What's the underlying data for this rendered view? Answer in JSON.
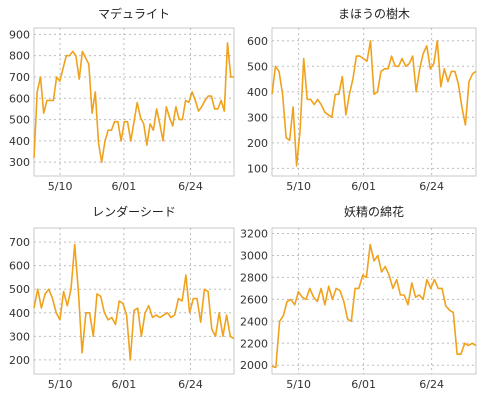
{
  "chart_data": [
    {
      "type": "line",
      "title": "マデュライト",
      "xlabel": "",
      "ylabel": "",
      "color": "#F0A21C",
      "xticks": [
        "5/10",
        "6/01",
        "6/24"
      ],
      "yticks": [
        300,
        400,
        500,
        600,
        700,
        800,
        900
      ],
      "ylim": [
        235,
        930
      ],
      "x_range_days": [
        0,
        69
      ],
      "xtick_days": [
        9,
        31,
        54
      ],
      "grid": true,
      "values": [
        320,
        630,
        700,
        530,
        590,
        590,
        590,
        700,
        680,
        740,
        800,
        800,
        820,
        800,
        690,
        820,
        790,
        760,
        530,
        630,
        390,
        300,
        400,
        450,
        450,
        490,
        490,
        400,
        490,
        490,
        400,
        490,
        580,
        510,
        480,
        380,
        480,
        450,
        550,
        480,
        400,
        560,
        510,
        470,
        560,
        500,
        500,
        590,
        580,
        630,
        590,
        540,
        560,
        590,
        610,
        610,
        550,
        550,
        590,
        540,
        860,
        700,
        700
      ]
    },
    {
      "type": "line",
      "title": "まほうの樹木",
      "xlabel": "",
      "ylabel": "",
      "color": "#F0A21C",
      "xticks": [
        "5/10",
        "6/01",
        "6/24"
      ],
      "yticks": [
        100,
        200,
        300,
        400,
        500,
        600
      ],
      "ylim": [
        70,
        650
      ],
      "x_range_days": [
        0,
        69
      ],
      "xtick_days": [
        9,
        31,
        54
      ],
      "grid": true,
      "values": [
        390,
        500,
        480,
        390,
        220,
        210,
        340,
        110,
        250,
        530,
        370,
        370,
        350,
        370,
        350,
        320,
        310,
        300,
        390,
        390,
        460,
        310,
        390,
        450,
        540,
        540,
        530,
        520,
        600,
        390,
        400,
        480,
        490,
        490,
        540,
        500,
        500,
        530,
        500,
        510,
        540,
        400,
        490,
        550,
        580,
        490,
        510,
        600,
        420,
        490,
        440,
        480,
        480,
        430,
        340,
        270,
        440,
        470,
        480
      ]
    },
    {
      "type": "line",
      "title": "レンダーシード",
      "xlabel": "",
      "ylabel": "",
      "color": "#F0A21C",
      "xticks": [
        "5/10",
        "6/01",
        "6/24"
      ],
      "yticks": [
        200,
        300,
        400,
        500,
        600,
        700
      ],
      "ylim": [
        140,
        760
      ],
      "x_range_days": [
        0,
        69
      ],
      "xtick_days": [
        9,
        31,
        54
      ],
      "grid": true,
      "values": [
        420,
        500,
        420,
        480,
        500,
        460,
        400,
        370,
        490,
        430,
        500,
        690,
        490,
        230,
        400,
        400,
        300,
        480,
        470,
        400,
        370,
        380,
        350,
        450,
        440,
        390,
        200,
        410,
        420,
        300,
        400,
        430,
        380,
        390,
        380,
        390,
        400,
        380,
        390,
        460,
        450,
        560,
        400,
        460,
        460,
        360,
        500,
        490,
        330,
        300,
        400,
        300,
        390,
        300,
        290
      ]
    },
    {
      "type": "line",
      "title": "妖精の綿花",
      "xlabel": "",
      "ylabel": "",
      "color": "#F0A21C",
      "xticks": [
        "5/10",
        "6/01",
        "6/24"
      ],
      "yticks": [
        2000,
        2200,
        2400,
        2600,
        2800,
        3000,
        3200
      ],
      "ylim": [
        1920,
        3250
      ],
      "x_range_days": [
        0,
        69
      ],
      "xtick_days": [
        9,
        31,
        54
      ],
      "grid": true,
      "values": [
        1990,
        1980,
        2400,
        2450,
        2580,
        2600,
        2550,
        2670,
        2620,
        2600,
        2700,
        2620,
        2580,
        2700,
        2550,
        2720,
        2600,
        2700,
        2680,
        2580,
        2420,
        2400,
        2700,
        2700,
        2820,
        2800,
        3100,
        2950,
        3000,
        2850,
        2900,
        2820,
        2700,
        2780,
        2640,
        2640,
        2550,
        2750,
        2620,
        2640,
        2600,
        2780,
        2700,
        2780,
        2700,
        2700,
        2540,
        2500,
        2480,
        2100,
        2100,
        2200,
        2180,
        2200,
        2180
      ]
    }
  ]
}
